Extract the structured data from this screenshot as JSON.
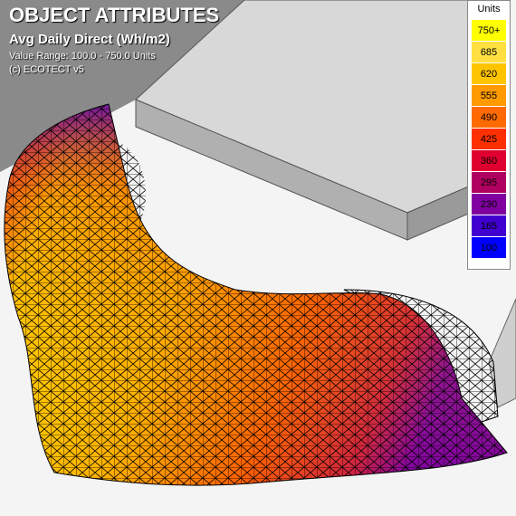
{
  "overlay": {
    "title": "OBJECT ATTRIBUTES",
    "subtitle": "Avg Daily Direct (Wh/m2)",
    "range": "Value Range: 100.0 - 750.0 Units",
    "credit": "(c) ECOTECT v5"
  },
  "legend": {
    "title": "Units",
    "items": [
      {
        "label": "750+",
        "color": "#ffff00"
      },
      {
        "label": "685",
        "color": "#ffe040"
      },
      {
        "label": "620",
        "color": "#ffc400"
      },
      {
        "label": "555",
        "color": "#ff9a00"
      },
      {
        "label": "490",
        "color": "#ff6a00"
      },
      {
        "label": "425",
        "color": "#ff3000"
      },
      {
        "label": "360",
        "color": "#e00030"
      },
      {
        "label": "295",
        "color": "#b00060"
      },
      {
        "label": "230",
        "color": "#8000a0"
      },
      {
        "label": "165",
        "color": "#4000d0"
      },
      {
        "label": "100",
        "color": "#0000ff"
      }
    ]
  }
}
